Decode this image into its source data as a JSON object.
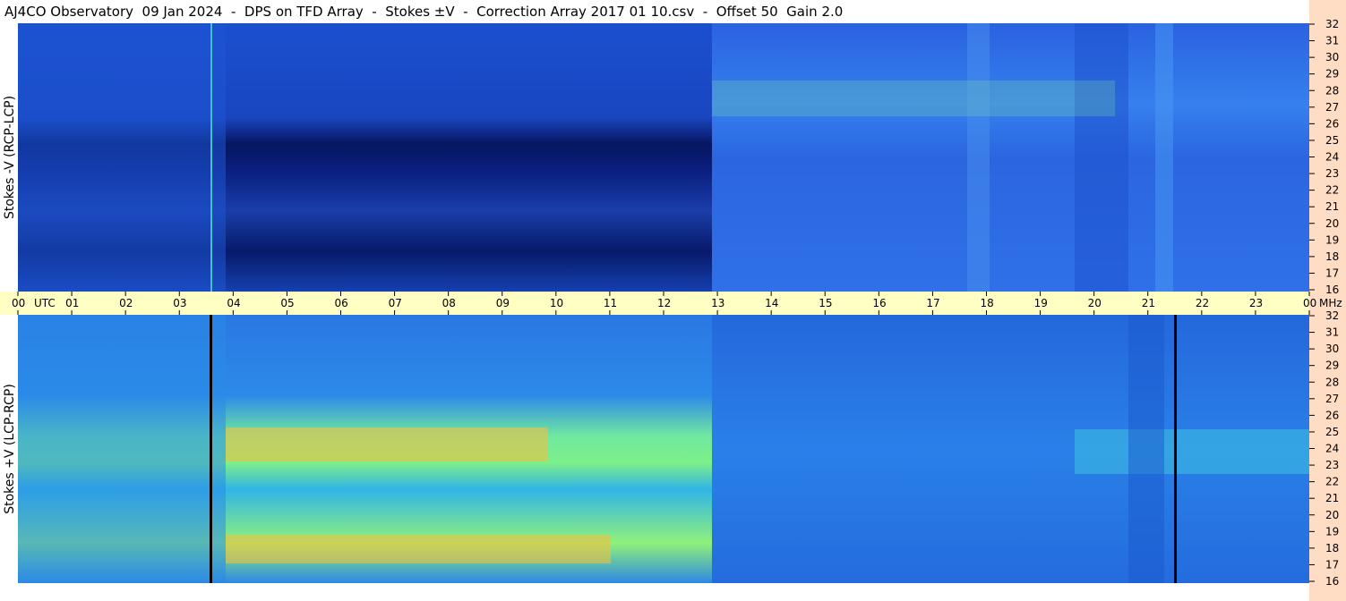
{
  "header": {
    "title": "AJ4CO Observatory  09 Jan 2024  -  DPS on TFD Array  -  Stokes ±V  -  Correction Array 2017 01 10.csv  -  Offset 50  Gain 2.0"
  },
  "panels": [
    {
      "label": "Stokes -V (RCP-LCP)"
    },
    {
      "label": "Stokes +V (LCP-RCP)"
    }
  ],
  "frequency_ticks": [
    32,
    31,
    30,
    29,
    28,
    27,
    26,
    25,
    24,
    23,
    22,
    21,
    20,
    19,
    18,
    17,
    16
  ],
  "frequency_unit": "MHz",
  "time_ticks": [
    "00",
    "01",
    "02",
    "03",
    "04",
    "05",
    "06",
    "07",
    "08",
    "09",
    "10",
    "11",
    "12",
    "13",
    "14",
    "15",
    "16",
    "17",
    "18",
    "19",
    "20",
    "21",
    "22",
    "23",
    "00"
  ],
  "time_unit": "UTC"
}
